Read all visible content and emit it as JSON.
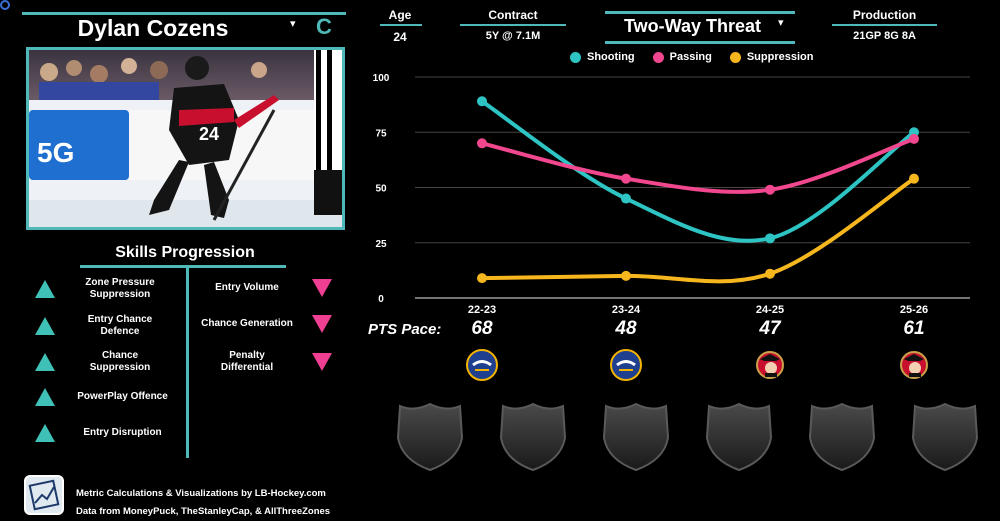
{
  "player": {
    "name": "Dylan Cozens",
    "position": "C",
    "photo_caption": ""
  },
  "skills": {
    "title": "Skills Progression",
    "up": [
      "Zone Pressure Suppression",
      "Entry Chance Defence",
      "Chance Suppression",
      "PowerPlay Offence",
      "Entry Disruption"
    ],
    "down": [
      "Entry Volume",
      "Chance Generation",
      "Penalty Differential"
    ]
  },
  "header": {
    "age_label": "Age",
    "age_value": "24",
    "contract_label": "Contract",
    "contract_value": "5Y @ 7.1M",
    "archetype": "Two-Way Threat",
    "production_label": "Production",
    "production_value": "21GP 8G 8A"
  },
  "pts_pace": {
    "label": "PTS Pace:",
    "values": [
      "68",
      "48",
      "47",
      "61"
    ]
  },
  "teams": [
    "BUF",
    "BUF",
    "OTT",
    "OTT"
  ],
  "footer": {
    "line1": "Metric Calculations & Visualizations by LB-Hockey.com",
    "line2": "Data from MoneyPuck, TheStanleyCap, & AllThreeZones"
  },
  "colors": {
    "accent": "#4fb8b8",
    "shooting": "#2ec4c4",
    "passing": "#f0478f",
    "suppression": "#f6b61e",
    "up_arrow": "#3fc1b8",
    "down_arrow": "#ee3f93"
  },
  "chart_data": {
    "type": "line",
    "categories": [
      "22-23",
      "23-24",
      "24-25",
      "25-26"
    ],
    "series": [
      {
        "name": "Shooting",
        "values": [
          89,
          45,
          27,
          75
        ]
      },
      {
        "name": "Passing",
        "values": [
          70,
          54,
          49,
          72
        ]
      },
      {
        "name": "Suppression",
        "values": [
          9,
          10,
          11,
          54
        ]
      }
    ],
    "yticks": [
      "0",
      "25",
      "50",
      "75",
      "100"
    ],
    "ylim": [
      0,
      100
    ],
    "grid": true,
    "legend": "top"
  }
}
